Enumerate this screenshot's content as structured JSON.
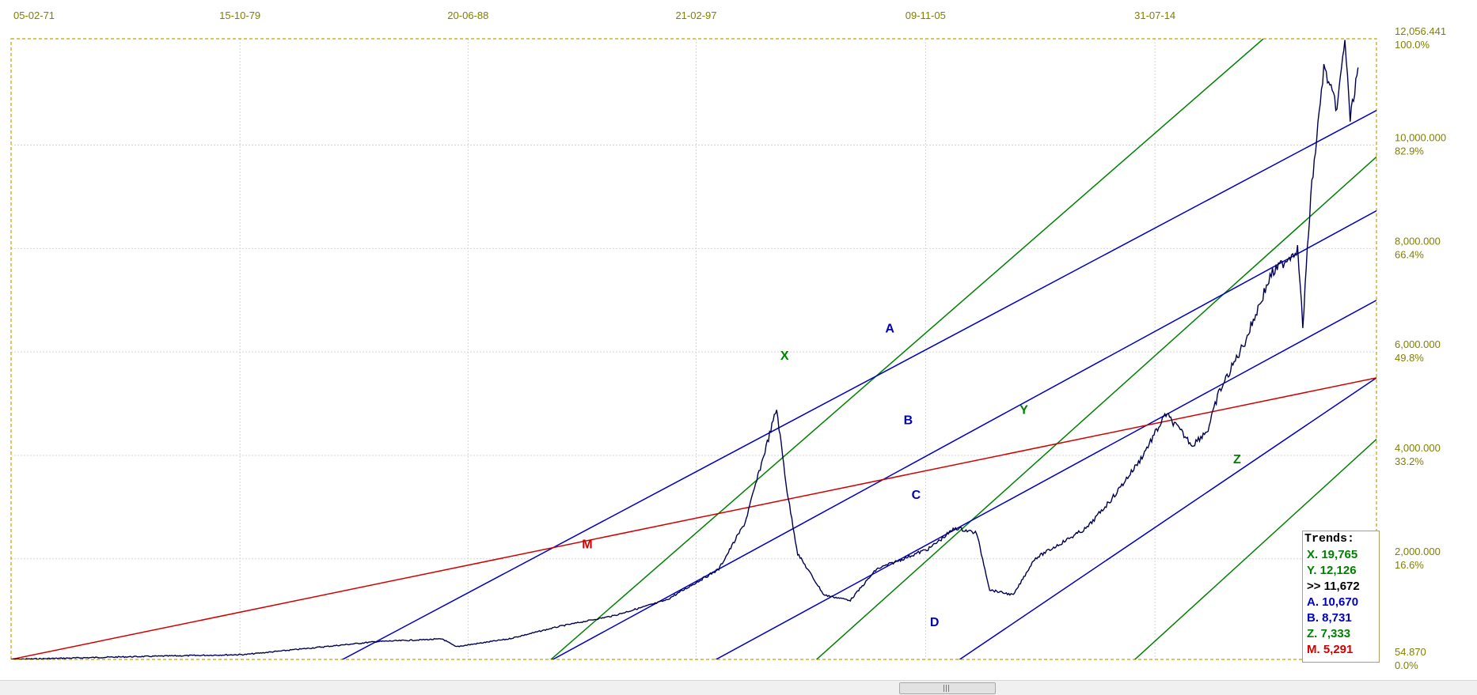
{
  "chart_data": {
    "type": "line",
    "title": "",
    "x_ticks": [
      "05-02-71",
      "15-10-79",
      "20-06-88",
      "21-02-97",
      "09-11-05",
      "31-07-14"
    ],
    "y_ticks": [
      {
        "value": "12,056.441",
        "pct": "100.0%"
      },
      {
        "value": "10,000.000",
        "pct": "82.9%"
      },
      {
        "value": "8,000.000",
        "pct": "66.4%"
      },
      {
        "value": "6,000.000",
        "pct": "49.8%"
      },
      {
        "value": "4,000.000",
        "pct": "33.2%"
      },
      {
        "value": "2,000.000",
        "pct": "16.6%"
      },
      {
        "value": "54.870",
        "pct": "0.0%"
      }
    ],
    "ylim": [
      54.87,
      12056.441
    ],
    "xlim": [
      "05-02-71",
      "2023"
    ],
    "grid": true,
    "price_series": {
      "name": "",
      "color": "#000050",
      "x": [
        1971.1,
        1975,
        1980,
        1985,
        1987.5,
        1988,
        1990,
        1992,
        1994,
        1996,
        1997,
        1998,
        1999,
        2000.2,
        2000.6,
        2001,
        2002,
        2003,
        2004,
        2005,
        2006,
        2007,
        2007.8,
        2008.3,
        2009.2,
        2010,
        2011,
        2012,
        2013,
        2014,
        2015,
        2016,
        2016.6,
        2017,
        2018,
        2019,
        2020,
        2020.2,
        2020.5,
        2021,
        2021.5,
        2021.8,
        2022,
        2022.3
      ],
      "y": [
        55,
        100,
        150,
        400,
        450,
        300,
        450,
        700,
        900,
        1200,
        1500,
        1800,
        2700,
        4900,
        3300,
        2100,
        1300,
        1200,
        1800,
        2000,
        2200,
        2600,
        2500,
        1400,
        1300,
        2000,
        2300,
        2600,
        3200,
        3900,
        4800,
        4200,
        4500,
        5200,
        6200,
        7500,
        8000,
        6500,
        9000,
        11500,
        10700,
        12056,
        10500,
        11500
      ]
    },
    "trend_lines": [
      {
        "name": "X",
        "color": "#008000",
        "points": [
          [
            1991.5,
            0
          ],
          [
            2018.7,
            12056
          ]
        ]
      },
      {
        "name": "Y",
        "color": "#008000",
        "points": [
          [
            2001.6,
            0
          ],
          [
            2028,
            12056
          ]
        ]
      },
      {
        "name": "Z",
        "color": "#008000",
        "points": [
          [
            2013.7,
            0
          ],
          [
            2039.7,
            12056
          ]
        ]
      },
      {
        "name": "A",
        "color": "#0000c0",
        "points": [
          [
            1983.5,
            0
          ],
          [
            2023,
            10670
          ]
        ]
      },
      {
        "name": "B",
        "color": "#0000c0",
        "points": [
          [
            1991.5,
            0
          ],
          [
            2023,
            8731
          ]
        ]
      },
      {
        "name": "C",
        "color": "#0000c0",
        "points": [
          [
            1997.7,
            0
          ],
          [
            2023,
            7000
          ]
        ]
      },
      {
        "name": "D",
        "color": "#0000c0",
        "points": [
          [
            2007,
            0
          ],
          [
            2023,
            5500
          ]
        ]
      },
      {
        "name": "M",
        "color": "#d00000",
        "points": [
          [
            1971.1,
            55
          ],
          [
            2023,
            5500
          ]
        ]
      }
    ],
    "trend_labels": [
      {
        "name": "X",
        "color": "#008000",
        "x": 2000.5,
        "y": 5850
      },
      {
        "name": "A",
        "color": "#0000c0",
        "x": 2004.5,
        "y": 6380
      },
      {
        "name": "B",
        "color": "#0000c0",
        "x": 2005.2,
        "y": 4600
      },
      {
        "name": "Y",
        "color": "#008000",
        "x": 2009.6,
        "y": 4800
      },
      {
        "name": "C",
        "color": "#0000c0",
        "x": 2005.5,
        "y": 3160
      },
      {
        "name": "Z",
        "color": "#008000",
        "x": 2017.7,
        "y": 3850
      },
      {
        "name": "M",
        "color": "#d00000",
        "x": 1993.0,
        "y": 2200
      },
      {
        "name": "D",
        "color": "#0000c0",
        "x": 2006.2,
        "y": 700
      }
    ]
  },
  "trends": {
    "title": "Trends:",
    "rows": [
      {
        "text": "X. 19,765",
        "color": "#008000"
      },
      {
        "text": "Y. 12,126",
        "color": "#008000"
      },
      {
        "text": ">> 11,672",
        "color": "#000000"
      },
      {
        "text": "A. 10,670",
        "color": "#0000c0"
      },
      {
        "text": "B.  8,731",
        "color": "#0000c0"
      },
      {
        "text": "Z.  7,333",
        "color": "#008000"
      },
      {
        "text": "M.   5,291",
        "color": "#d00000"
      }
    ]
  },
  "scrollbar": {
    "grip": "|||"
  }
}
